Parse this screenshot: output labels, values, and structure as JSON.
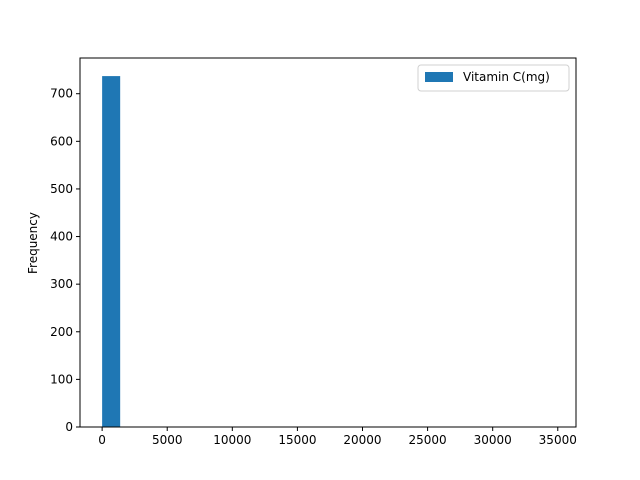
{
  "chart_data": {
    "type": "bar",
    "subtype": "histogram",
    "xlabel": "",
    "ylabel": "Frequency",
    "xlim": [
      -1700,
      36400
    ],
    "ylim": [
      0,
      775
    ],
    "xticks": [
      0,
      5000,
      10000,
      15000,
      20000,
      25000,
      30000,
      35000
    ],
    "yticks": [
      0,
      100,
      200,
      300,
      400,
      500,
      600,
      700
    ],
    "grid": false,
    "legend": {
      "position": "top-right",
      "entries": [
        "Vitamin C(mg)"
      ]
    },
    "series": [
      {
        "name": "Vitamin C(mg)",
        "color": "#1f77b4",
        "bins": [
          {
            "x0": 0,
            "x1": 1386,
            "count": 737
          }
        ]
      }
    ]
  }
}
